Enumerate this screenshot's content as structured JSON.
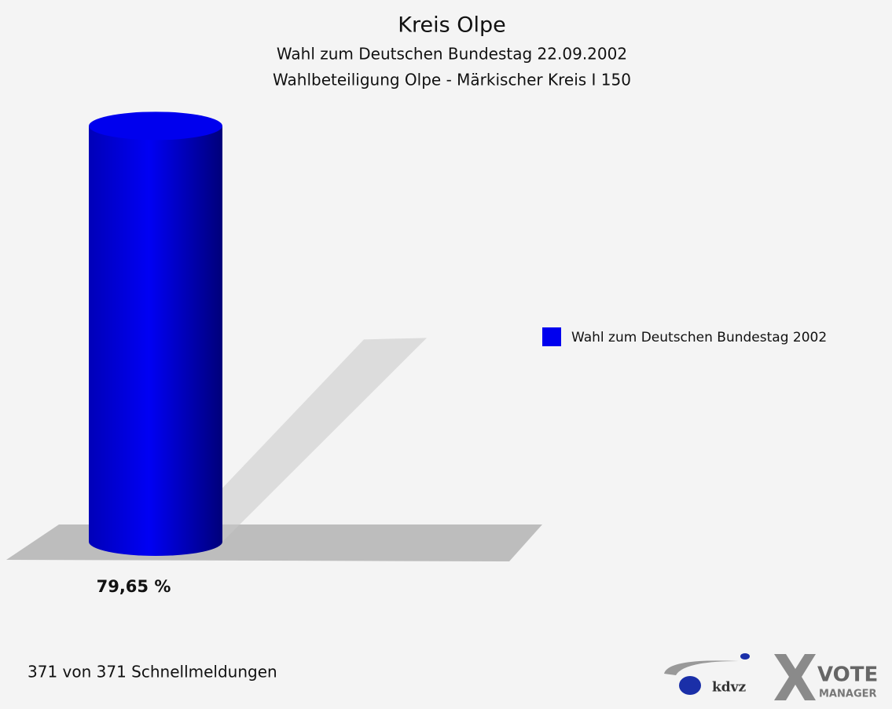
{
  "chart_data": {
    "type": "bar",
    "title": "Kreis Olpe",
    "subtitle": [
      "Wahl zum Deutschen Bundestag 22.09.2002",
      "Wahlbeteiligung Olpe - Märkischer Kreis I 150"
    ],
    "series": [
      {
        "name": "Wahl zum Deutschen Bundestag 2002",
        "color": "#0000ee",
        "values": [
          79.65
        ]
      }
    ],
    "value_labels": [
      "79,65 %"
    ],
    "legend": "right"
  },
  "footer": {
    "note": "371 von 371 Schnellmeldungen",
    "logos": [
      "kdvz",
      "VOTE",
      "MANAGER"
    ]
  }
}
